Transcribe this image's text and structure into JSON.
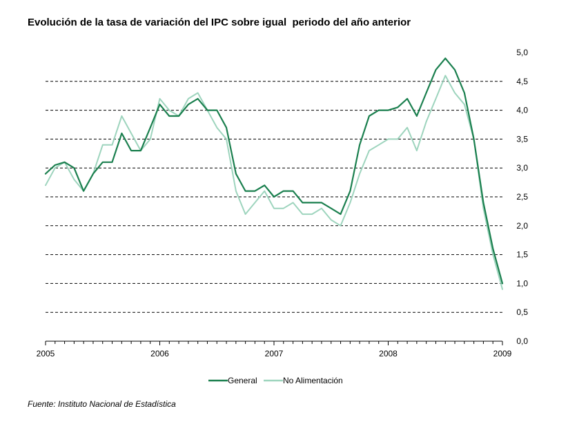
{
  "chart_data": {
    "type": "line",
    "title": "Evolución de la tasa de variación del IPC sobre igual  periodo del año anterior",
    "source": "Fuente: Instituto Nacional de Estadística",
    "ylim": [
      0,
      5
    ],
    "y_ticks": [
      "0,0",
      "0,5",
      "1,0",
      "1,5",
      "2,0",
      "2,5",
      "3,0",
      "3,5",
      "4,0",
      "4,5",
      "5,0"
    ],
    "x_ticks": [
      "2005",
      "2006",
      "2007",
      "2008",
      "2009"
    ],
    "grid": true,
    "legend_position": "bottom",
    "x": [
      2005.0,
      2005.083,
      2005.167,
      2005.25,
      2005.333,
      2005.417,
      2005.5,
      2005.583,
      2005.667,
      2005.75,
      2005.833,
      2005.917,
      2006.0,
      2006.083,
      2006.167,
      2006.25,
      2006.333,
      2006.417,
      2006.5,
      2006.583,
      2006.667,
      2006.75,
      2006.833,
      2006.917,
      2007.0,
      2007.083,
      2007.167,
      2007.25,
      2007.333,
      2007.417,
      2007.5,
      2007.583,
      2007.667,
      2007.75,
      2007.833,
      2007.917,
      2008.0,
      2008.083,
      2008.167,
      2008.25,
      2008.333,
      2008.417,
      2008.5,
      2008.583,
      2008.667,
      2008.75,
      2008.833,
      2008.917,
      2009.0
    ],
    "series": [
      {
        "name": "General",
        "color": "#1a7f4e",
        "width": 2.2,
        "values": [
          2.9,
          3.05,
          3.1,
          3.0,
          2.6,
          2.9,
          3.1,
          3.1,
          3.6,
          3.3,
          3.3,
          3.7,
          4.1,
          3.9,
          3.9,
          4.1,
          4.2,
          4.0,
          4.0,
          3.7,
          2.9,
          2.6,
          2.6,
          2.7,
          2.5,
          2.6,
          2.6,
          2.4,
          2.4,
          2.4,
          2.3,
          2.2,
          2.6,
          3.4,
          3.9,
          4.0,
          4.0,
          4.05,
          4.2,
          3.9,
          4.3,
          4.7,
          4.9,
          4.7,
          4.3,
          3.5,
          2.4,
          1.6,
          1.0
        ]
      },
      {
        "name": "No Alimentación",
        "color": "#9dd4bd",
        "width": 2.0,
        "values": [
          2.7,
          3.0,
          3.1,
          2.8,
          2.6,
          2.9,
          3.4,
          3.4,
          3.9,
          3.6,
          3.3,
          3.5,
          4.2,
          4.0,
          3.9,
          4.2,
          4.3,
          4.0,
          3.7,
          3.5,
          2.6,
          2.2,
          2.4,
          2.6,
          2.3,
          2.3,
          2.4,
          2.2,
          2.2,
          2.3,
          2.1,
          2.0,
          2.4,
          2.9,
          3.3,
          3.4,
          3.5,
          3.5,
          3.7,
          3.3,
          3.8,
          4.2,
          4.6,
          4.3,
          4.1,
          3.5,
          2.3,
          1.5,
          0.9
        ]
      }
    ]
  }
}
